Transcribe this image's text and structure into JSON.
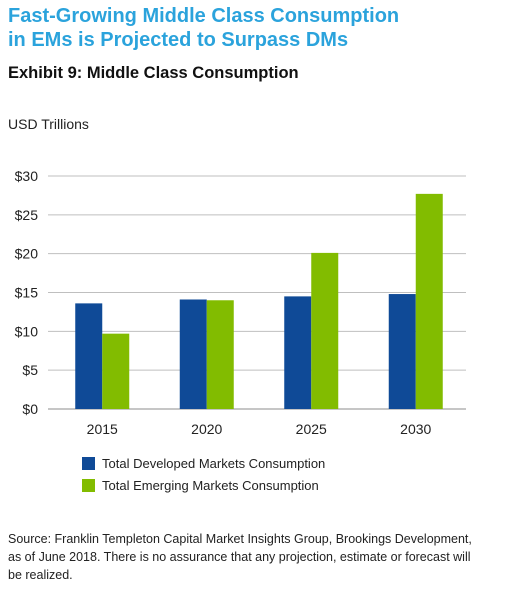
{
  "headline": {
    "line1": "Fast-Growing Middle Class Consumption",
    "line2": "in EMs is Projected to Surpass DMs"
  },
  "exhibit_title": "Exhibit 9: Middle Class Consumption",
  "colors": {
    "headline": "#2ba3dc",
    "developed": "#0f4a97",
    "emerging": "#82bc00",
    "gridline": "#bfbfbf"
  },
  "chart_data": {
    "type": "bar",
    "ylabel": "USD Trillions",
    "categories": [
      "2015",
      "2020",
      "2025",
      "2030"
    ],
    "series": [
      {
        "name": "Total Developed Markets Consumption",
        "values": [
          13.6,
          14.1,
          14.5,
          14.8
        ]
      },
      {
        "name": "Total Emerging Markets Consumption",
        "values": [
          9.7,
          14.0,
          20.1,
          27.7
        ]
      }
    ],
    "ylim": [
      0,
      30
    ],
    "yticks": [
      0,
      5,
      10,
      15,
      20,
      25,
      30
    ],
    "ytick_labels": [
      "$0",
      "$5",
      "$10",
      "$15",
      "$20",
      "$25",
      "$30"
    ],
    "grid": true,
    "legend_position": "bottom-left"
  },
  "source": {
    "line1": "Source: Franklin Templeton Capital Market Insights Group, Brookings Development,",
    "line2": "as of June 2018. There is no assurance that any projection, estimate or forecast will",
    "line3": "be realized."
  }
}
